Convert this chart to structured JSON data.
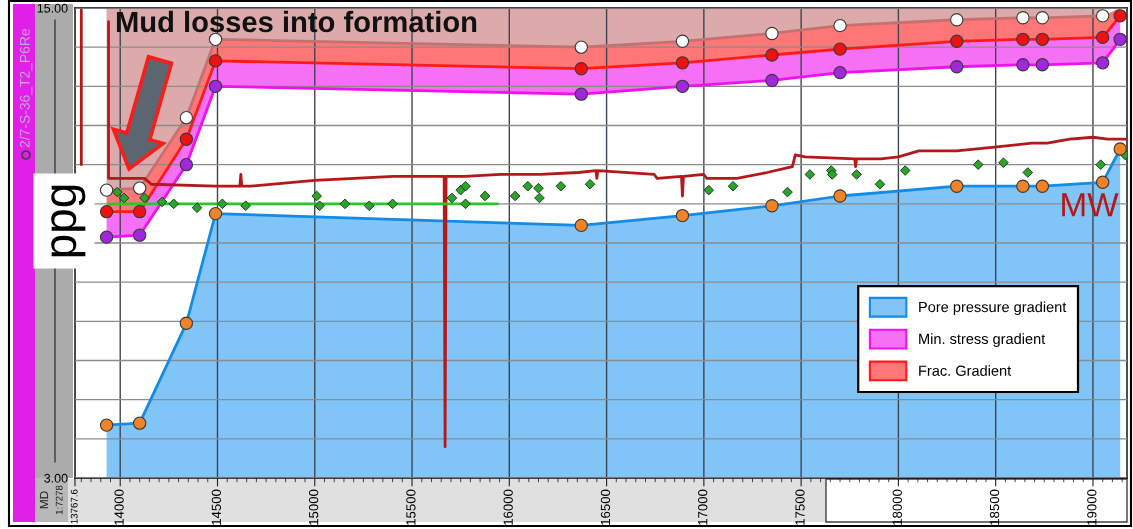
{
  "chart_data": {
    "type": "line",
    "ylabel": "ppg",
    "annotations": [
      "Mud losses into formation",
      "MD",
      "1:7278",
      "2/7-S-36_T2_P6Re"
    ],
    "x": [
      13930,
      14100,
      14340,
      14490,
      16370,
      16890,
      17350,
      17700,
      18300,
      18640,
      18740,
      19050,
      19140
    ],
    "xlim": [
      13767.6,
      19175
    ],
    "xticks": [
      {
        "value": 13767.6,
        "label": "13767.6"
      },
      14000,
      14500,
      15000,
      15500,
      16000,
      16500,
      17000,
      17500,
      18000,
      18500,
      19000
    ],
    "ylim": [
      3,
      15
    ],
    "yticks": [
      {
        "value": 3,
        "label": "3.00"
      },
      {
        "value": 4,
        "label": null
      },
      {
        "value": 5,
        "label": null
      },
      {
        "value": 6,
        "label": null
      },
      {
        "value": 7,
        "label": null
      },
      {
        "value": 8,
        "label": null
      },
      {
        "value": 9,
        "label": null
      },
      {
        "value": 10,
        "label": null
      },
      {
        "value": 11,
        "label": null
      },
      {
        "value": 12,
        "label": null
      },
      {
        "value": 13,
        "label": null
      },
      {
        "value": 14,
        "label": null
      },
      {
        "value": 15,
        "label": "15.00"
      }
    ],
    "grid": true,
    "legend": "bottom right",
    "series": [
      {
        "type": "area",
        "name": "Pore pressure gradient",
        "color": "#80c4f8",
        "marker": "circle",
        "values": [
          4.35,
          4.4,
          6.95,
          9.75,
          9.45,
          9.7,
          9.95,
          10.2,
          10.45,
          10.45,
          10.45,
          10.55,
          11.4
        ],
        "colors": [
          "#f08228",
          "#f08228",
          "#f08228",
          "#f08228",
          "#f08228",
          "#f08228",
          "#f08228",
          "#f08228",
          "#f08228",
          "#f08228",
          "#f08228",
          "#f08228",
          "#f08228"
        ]
      },
      {
        "name": "Min. stress gradient",
        "color": "#f010f0",
        "marker": "circle",
        "values": [
          9.15,
          9.2,
          11.0,
          13.0,
          12.8,
          13.0,
          13.15,
          13.35,
          13.5,
          13.55,
          13.55,
          13.6,
          14.2
        ],
        "colors": [
          "#a028dc",
          "#a028dc",
          "#a028dc",
          "#a028dc",
          "#a028dc",
          "#a028dc",
          "#a028dc",
          "#a028dc",
          "#a028dc",
          "#a028dc",
          "#a028dc",
          "#a028dc",
          "#a028dc"
        ],
        "lower": [
          9.15,
          9.2,
          11.0,
          13.0,
          12.8,
          13.0,
          13.15,
          13.35,
          13.5,
          13.55,
          13.55,
          13.6,
          14.2
        ],
        "upper": [
          9.8,
          9.8,
          11.65,
          13.65,
          13.45,
          13.6,
          13.8,
          13.95,
          14.15,
          14.2,
          14.2,
          14.25,
          14.8
        ]
      },
      {
        "name": "Frac. Gradient",
        "color": "#ff1a1a",
        "marker": "circle",
        "values": [
          9.8,
          9.8,
          11.65,
          13.65,
          13.45,
          13.6,
          13.8,
          13.95,
          14.15,
          14.2,
          14.2,
          14.25,
          14.8
        ],
        "colors": [
          "#ee1111",
          "#ee1111",
          "#ee1111",
          "#ee1111",
          "#ee1111",
          "#ee1111",
          "#ee1111",
          "#ee1111",
          "#ee1111",
          "#ee1111",
          "#ee1111",
          "#ee1111",
          "#ee1111"
        ],
        "lower": [
          9.8,
          9.8,
          11.65,
          13.65,
          13.45,
          13.6,
          13.8,
          13.95,
          14.15,
          14.2,
          14.2,
          14.25,
          14.8
        ],
        "upper": [
          10.35,
          10.4,
          12.2,
          14.2,
          14.0,
          14.15,
          14.35,
          14.55,
          14.7,
          14.75,
          14.75,
          14.8,
          15
        ]
      },
      {
        "color": "#c57171",
        "marker": "circle",
        "values": [
          10.35,
          10.4,
          12.2,
          14.2,
          14.0,
          14.15,
          14.35,
          14.55,
          14.7,
          14.75,
          14.75,
          14.8,
          null
        ],
        "colors": [
          "#ffffff",
          "#ffffff",
          "#ffffff",
          "#ffffff",
          "#ffffff",
          "#ffffff",
          "#ffffff",
          "#ffffff",
          "#ffffff",
          "#ffffff",
          "#ffffff",
          "#ffffff",
          "#ffffff"
        ],
        "lower": [
          10.35,
          10.4,
          12.2,
          14.2,
          14.0,
          14.15,
          14.35,
          14.55,
          14.7,
          14.75,
          14.75,
          14.8,
          null
        ],
        "upper": [
          15,
          15,
          15,
          15,
          15,
          15,
          15,
          15,
          15,
          15,
          15,
          15,
          null
        ]
      },
      {
        "name": "MW",
        "color": "#b41818",
        "marker": "none",
        "x": [
          13800,
          13800,
          13870,
          13940,
          13940,
          14125,
          14160,
          14490,
          14615,
          14620,
          14625,
          14670,
          15000,
          15405,
          15665,
          15670,
          15675,
          15770,
          15955,
          16160,
          16355,
          16445,
          16450,
          16455,
          16745,
          16760,
          16885,
          16890,
          16895,
          17000,
          17015,
          17170,
          17325,
          17455,
          17470,
          17520,
          17775,
          17780,
          17785,
          17910,
          18000,
          18105,
          18300,
          18495,
          18685,
          18765,
          18880,
          19000,
          19075,
          19175
        ],
        "values": [
          14.95,
          11.0,
          null,
          14.65,
          10.65,
          10.65,
          10.5,
          10.45,
          10.45,
          10.75,
          10.45,
          10.45,
          10.6,
          10.7,
          10.7,
          3.8,
          10.7,
          10.7,
          10.75,
          10.75,
          10.8,
          10.85,
          10.65,
          10.85,
          10.75,
          10.65,
          10.7,
          10.2,
          10.7,
          10.75,
          10.65,
          10.65,
          10.8,
          10.95,
          11.25,
          11.2,
          11.15,
          10.95,
          11.15,
          11.15,
          11.2,
          11.35,
          11.35,
          11.45,
          11.55,
          11.55,
          11.65,
          11.7,
          11.65,
          11.65
        ]
      },
      {
        "color": "#28c828",
        "marker": "none",
        "x": [
          13940,
          15940
        ],
        "values": [
          10.0,
          10.0
        ]
      },
      {
        "type": "scatter",
        "color": "#2aa52a",
        "marker": "diamond",
        "x": [
          13985,
          14020,
          14125,
          14215,
          14275,
          14395,
          14525,
          14645,
          15010,
          15025,
          15155,
          15280,
          15400,
          15705,
          15750,
          15775,
          15775,
          15875,
          16030,
          16095,
          16150,
          16155,
          16265,
          16415,
          17025,
          17150,
          17430,
          17545,
          17655,
          17660,
          17785,
          17905,
          18035,
          18410,
          18540,
          18665,
          19040,
          19165
        ],
        "values": [
          10.3,
          10.15,
          10.15,
          10.05,
          10.0,
          9.9,
          10.0,
          9.95,
          10.2,
          9.95,
          10.0,
          9.95,
          10.0,
          10.15,
          10.35,
          10.45,
          10.0,
          10.2,
          10.2,
          10.45,
          10.4,
          10.15,
          10.45,
          10.5,
          10.35,
          10.45,
          10.3,
          10.75,
          10.85,
          10.75,
          10.75,
          10.5,
          10.85,
          11.0,
          11.05,
          10.8,
          11.0,
          11.25
        ]
      }
    ]
  }
}
